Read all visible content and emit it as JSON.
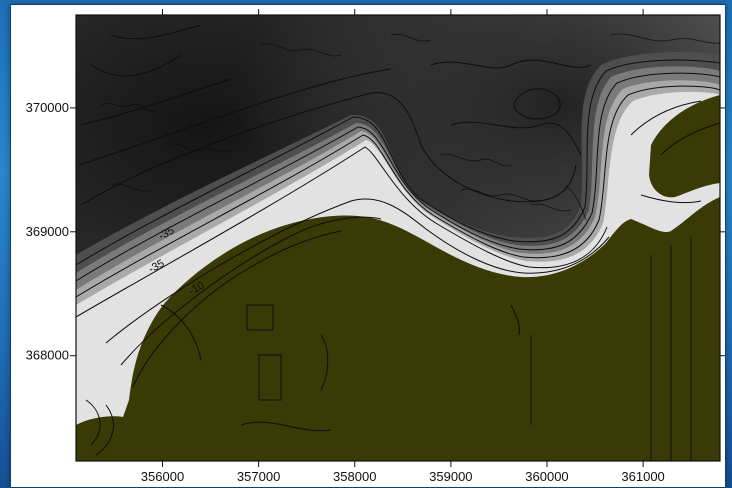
{
  "map": {
    "x_axis": {
      "ticks": [
        "356000",
        "357000",
        "358000",
        "359000",
        "360000",
        "361000"
      ],
      "values": [
        356000,
        357000,
        358000,
        359000,
        360000,
        361000
      ],
      "range": [
        355100,
        361800
      ]
    },
    "y_axis": {
      "ticks": [
        "370000",
        "369000",
        "368000"
      ],
      "values": [
        370000,
        369000,
        368000
      ],
      "range": [
        367150,
        370750
      ]
    },
    "contour_labels": [
      "-35",
      "-35",
      "-10"
    ],
    "colors": {
      "land": "#3a3a06",
      "deep_water": "#1b1b1b",
      "mid_water": "#5a5a5a",
      "shallow_water": "#e4e4e4",
      "contour_line": "#0d0d0d",
      "background_blue": "#1f6fb7"
    }
  }
}
